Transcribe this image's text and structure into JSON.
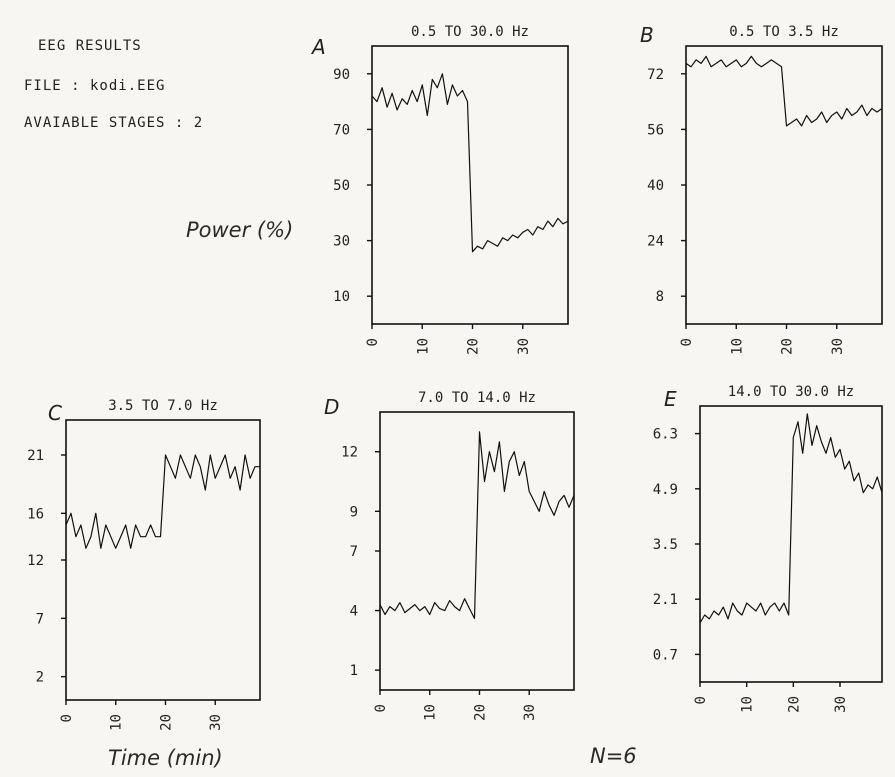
{
  "info": {
    "title": "EEG RESULTS",
    "file": "FILE : kodi.EEG",
    "stages": "AVAIABLE STAGES : 2"
  },
  "labels": {
    "power": "Power (%)",
    "time": "Time (min)",
    "n": "N=6"
  },
  "chart_data": [
    {
      "type": "line",
      "panel": "A",
      "title": "0.5 TO 30.0 Hz",
      "xlabel": "Time (min)",
      "ylabel": "Power (%)",
      "xlim": [
        0,
        39
      ],
      "ylim": [
        0,
        100
      ],
      "yticks": [
        10,
        30,
        50,
        70,
        90
      ],
      "xticks": [
        0,
        10,
        20,
        30
      ],
      "grid": false,
      "series": [
        {
          "x": [
            0,
            1,
            2,
            3,
            4,
            5,
            6,
            7,
            8,
            9,
            10,
            11,
            12,
            13,
            14,
            15,
            16,
            17,
            18,
            19,
            20,
            21,
            22,
            23,
            24,
            25,
            26,
            27,
            28,
            29,
            30,
            31,
            32,
            33,
            34,
            35,
            36,
            37,
            38,
            39
          ],
          "values": [
            82,
            80,
            85,
            78,
            83,
            77,
            81,
            79,
            84,
            80,
            86,
            75,
            88,
            85,
            90,
            79,
            86,
            82,
            84,
            80,
            26,
            28,
            27,
            30,
            29,
            28,
            31,
            30,
            32,
            31,
            33,
            34,
            32,
            35,
            34,
            37,
            35,
            38,
            36,
            37
          ]
        }
      ]
    },
    {
      "type": "line",
      "panel": "B",
      "title": "0.5 TO 3.5 Hz",
      "xlabel": "Time (min)",
      "ylabel": "Power (%)",
      "xlim": [
        0,
        39
      ],
      "ylim": [
        0,
        80
      ],
      "yticks": [
        8,
        24,
        40,
        56,
        72
      ],
      "xticks": [
        0,
        10,
        20,
        30
      ],
      "grid": false,
      "series": [
        {
          "x": [
            0,
            1,
            2,
            3,
            4,
            5,
            6,
            7,
            8,
            9,
            10,
            11,
            12,
            13,
            14,
            15,
            16,
            17,
            18,
            19,
            20,
            21,
            22,
            23,
            24,
            25,
            26,
            27,
            28,
            29,
            30,
            31,
            32,
            33,
            34,
            35,
            36,
            37,
            38,
            39
          ],
          "values": [
            75,
            74,
            76,
            75,
            77,
            74,
            75,
            76,
            74,
            75,
            76,
            74,
            75,
            77,
            75,
            74,
            75,
            76,
            75,
            74,
            57,
            58,
            59,
            57,
            60,
            58,
            59,
            61,
            58,
            60,
            61,
            59,
            62,
            60,
            61,
            63,
            60,
            62,
            61,
            62
          ]
        }
      ]
    },
    {
      "type": "line",
      "panel": "C",
      "title": "3.5 TO 7.0 Hz",
      "xlabel": "Time (min)",
      "ylabel": "Power (%)",
      "xlim": [
        0,
        39
      ],
      "ylim": [
        0,
        24
      ],
      "yticks": [
        2,
        7,
        12,
        16,
        21
      ],
      "xticks": [
        0,
        10,
        20,
        30
      ],
      "grid": false,
      "series": [
        {
          "x": [
            0,
            1,
            2,
            3,
            4,
            5,
            6,
            7,
            8,
            9,
            10,
            11,
            12,
            13,
            14,
            15,
            16,
            17,
            18,
            19,
            20,
            21,
            22,
            23,
            24,
            25,
            26,
            27,
            28,
            29,
            30,
            31,
            32,
            33,
            34,
            35,
            36,
            37,
            38,
            39
          ],
          "values": [
            15,
            16,
            14,
            15,
            13,
            14,
            16,
            13,
            15,
            14,
            13,
            14,
            15,
            13,
            15,
            14,
            14,
            15,
            14,
            14,
            21,
            20,
            19,
            21,
            20,
            19,
            21,
            20,
            18,
            21,
            19,
            20,
            21,
            19,
            20,
            18,
            21,
            19,
            20,
            20
          ]
        }
      ]
    },
    {
      "type": "line",
      "panel": "D",
      "title": "7.0 TO 14.0 Hz",
      "xlabel": "Time (min)",
      "ylabel": "Power (%)",
      "xlim": [
        0,
        39
      ],
      "ylim": [
        0,
        14
      ],
      "yticks": [
        1,
        4,
        7,
        9,
        12
      ],
      "xticks": [
        0,
        10,
        20,
        30
      ],
      "grid": false,
      "series": [
        {
          "x": [
            0,
            1,
            2,
            3,
            4,
            5,
            6,
            7,
            8,
            9,
            10,
            11,
            12,
            13,
            14,
            15,
            16,
            17,
            18,
            19,
            20,
            21,
            22,
            23,
            24,
            25,
            26,
            27,
            28,
            29,
            30,
            31,
            32,
            33,
            34,
            35,
            36,
            37,
            38,
            39
          ],
          "values": [
            4.3,
            3.8,
            4.2,
            4.0,
            4.4,
            3.9,
            4.1,
            4.3,
            4.0,
            4.2,
            3.8,
            4.4,
            4.1,
            4.0,
            4.5,
            4.2,
            4.0,
            4.6,
            4.1,
            3.6,
            13,
            10.5,
            12,
            11,
            12.5,
            10,
            11.5,
            12,
            10.8,
            11.5,
            10,
            9.5,
            9,
            10,
            9.3,
            8.8,
            9.5,
            9.8,
            9.2,
            9.8
          ]
        }
      ]
    },
    {
      "type": "line",
      "panel": "E",
      "title": "14.0 TO 30.0 Hz",
      "xlabel": "Time (min)",
      "ylabel": "Power (%)",
      "xlim": [
        0,
        39
      ],
      "ylim": [
        0,
        7
      ],
      "yticks": [
        0.7,
        2.1,
        3.5,
        4.9,
        6.3
      ],
      "xticks": [
        0,
        10,
        20,
        30
      ],
      "grid": false,
      "series": [
        {
          "x": [
            0,
            1,
            2,
            3,
            4,
            5,
            6,
            7,
            8,
            9,
            10,
            11,
            12,
            13,
            14,
            15,
            16,
            17,
            18,
            19,
            20,
            21,
            22,
            23,
            24,
            25,
            26,
            27,
            28,
            29,
            30,
            31,
            32,
            33,
            34,
            35,
            36,
            37,
            38,
            39
          ],
          "values": [
            1.5,
            1.7,
            1.6,
            1.8,
            1.7,
            1.9,
            1.6,
            2.0,
            1.8,
            1.7,
            2.0,
            1.9,
            1.8,
            2.0,
            1.7,
            1.9,
            2.0,
            1.8,
            2.0,
            1.7,
            6.2,
            6.6,
            5.8,
            6.8,
            6.0,
            6.5,
            6.1,
            5.8,
            6.2,
            5.7,
            5.9,
            5.4,
            5.6,
            5.1,
            5.3,
            4.8,
            5.0,
            4.9,
            5.2,
            4.8
          ]
        }
      ]
    }
  ]
}
